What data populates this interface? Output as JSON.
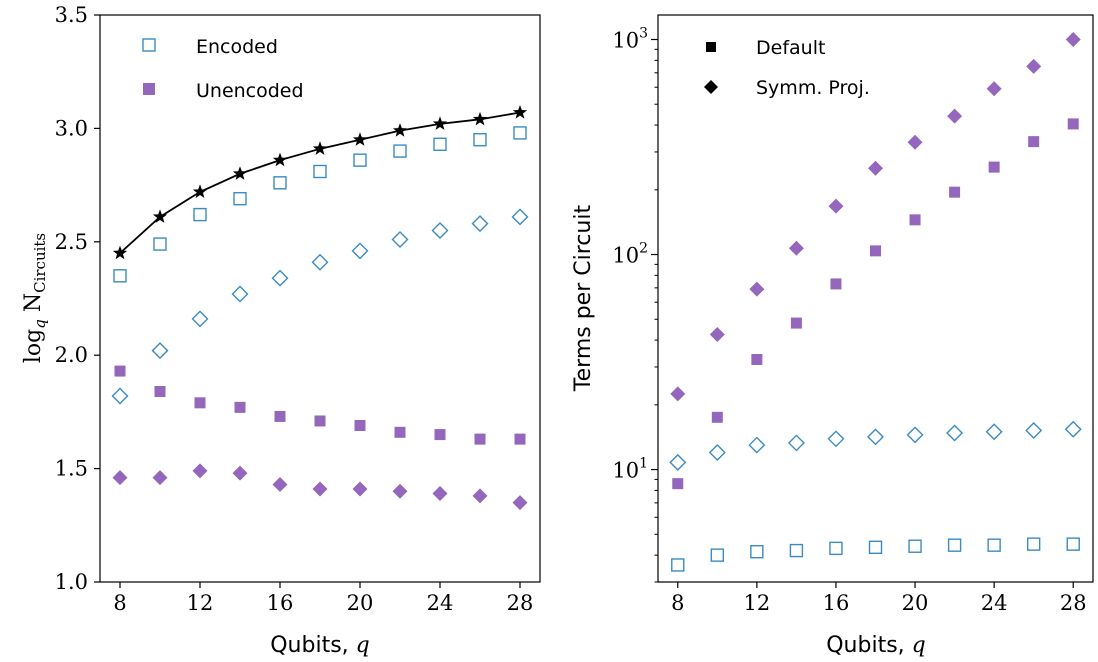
{
  "colors": {
    "encoded": "#3b8bc2",
    "unencoded": "#9467bd",
    "fit_line": "#000000"
  },
  "chart_data": [
    {
      "type": "scatter",
      "xlabel": "Qubits, q",
      "xlabel_text": "Qubits,",
      "xlabel_var": "q",
      "ylabel": "log_q N_Circuits",
      "ylabel_log": "log",
      "ylabel_sub": "q",
      "ylabel_N": "N",
      "ylabel_subscript": "Circuits",
      "xlim": [
        7,
        29
      ],
      "ylim": [
        1.0,
        3.5
      ],
      "x_ticks": [
        8,
        12,
        16,
        20,
        24,
        28
      ],
      "x_tick_labels": [
        "8",
        "12",
        "16",
        "20",
        "24",
        "28"
      ],
      "y_ticks": [
        1.0,
        1.5,
        2.0,
        2.5,
        3.0,
        3.5
      ],
      "y_tick_labels": [
        "1.0",
        "1.5",
        "2.0",
        "2.5",
        "3.0",
        "3.5"
      ],
      "legend": {
        "position": "top-left",
        "entries": [
          {
            "label": "Encoded",
            "marker": "open-square",
            "color": "#3b8bc2"
          },
          {
            "label": "Unencoded",
            "marker": "filled-square",
            "color": "#9467bd"
          }
        ]
      },
      "x": [
        8,
        10,
        12,
        14,
        16,
        18,
        20,
        22,
        24,
        26,
        28
      ],
      "series": [
        {
          "marker": "star-line",
          "color": "#000000",
          "values": [
            2.45,
            2.61,
            2.72,
            2.8,
            2.86,
            2.91,
            2.95,
            2.99,
            3.02,
            3.04,
            3.07
          ]
        },
        {
          "marker": "open-square",
          "color": "#3b8bc2",
          "values": [
            2.35,
            2.49,
            2.62,
            2.69,
            2.76,
            2.81,
            2.86,
            2.9,
            2.93,
            2.95,
            2.98
          ]
        },
        {
          "marker": "open-diamond",
          "color": "#3b8bc2",
          "values": [
            1.82,
            2.02,
            2.16,
            2.27,
            2.34,
            2.41,
            2.46,
            2.51,
            2.55,
            2.58,
            2.61
          ]
        },
        {
          "marker": "filled-square",
          "color": "#9467bd",
          "values": [
            1.93,
            1.84,
            1.79,
            1.77,
            1.73,
            1.71,
            1.69,
            1.66,
            1.65,
            1.63,
            1.63
          ]
        },
        {
          "marker": "filled-diamond",
          "color": "#9467bd",
          "values": [
            1.46,
            1.46,
            1.49,
            1.48,
            1.43,
            1.41,
            1.41,
            1.4,
            1.39,
            1.38,
            1.35
          ]
        }
      ]
    },
    {
      "type": "scatter",
      "xlabel": "Qubits, q",
      "xlabel_text": "Qubits,",
      "xlabel_var": "q",
      "ylabel": "Terms per Circuit",
      "y_scale": "log",
      "xlim": [
        7,
        29
      ],
      "ylim": [
        3.0,
        1300
      ],
      "x_ticks": [
        8,
        12,
        16,
        20,
        24,
        28
      ],
      "x_tick_labels": [
        "8",
        "12",
        "16",
        "20",
        "24",
        "28"
      ],
      "y_major_ticks": [
        10,
        100,
        1000
      ],
      "y_tick_labels": [
        {
          "base": "10",
          "exp": "1"
        },
        {
          "base": "10",
          "exp": "2"
        },
        {
          "base": "10",
          "exp": "3"
        }
      ],
      "legend": {
        "position": "top-left",
        "entries": [
          {
            "label": "Default",
            "marker": "filled-square",
            "color": "#000000"
          },
          {
            "label": "Symm. Proj.",
            "marker": "filled-diamond",
            "color": "#000000"
          }
        ]
      },
      "x": [
        8,
        10,
        12,
        14,
        16,
        18,
        20,
        22,
        24,
        26,
        28
      ],
      "series": [
        {
          "marker": "filled-diamond",
          "color": "#9467bd",
          "values": [
            22.5,
            42.5,
            69,
            107,
            168,
            252,
            333,
            440,
            590,
            750,
            1000
          ]
        },
        {
          "marker": "filled-square",
          "color": "#9467bd",
          "values": [
            8.6,
            17.5,
            32.5,
            48,
            73,
            104,
            145,
            195,
            255,
            335,
            405
          ]
        },
        {
          "marker": "open-diamond",
          "color": "#3b8bc2",
          "values": [
            10.8,
            12.0,
            13.0,
            13.3,
            13.9,
            14.2,
            14.5,
            14.8,
            15.0,
            15.2,
            15.4
          ]
        },
        {
          "marker": "open-square",
          "color": "#3b8bc2",
          "values": [
            3.6,
            4.0,
            4.15,
            4.2,
            4.3,
            4.35,
            4.4,
            4.45,
            4.45,
            4.5,
            4.5
          ]
        }
      ]
    }
  ]
}
